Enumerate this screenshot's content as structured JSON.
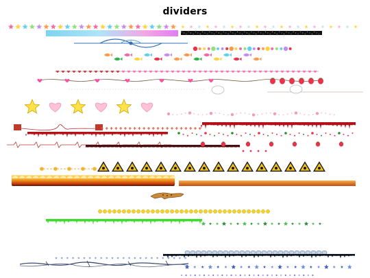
{
  "page": {
    "title": "dividers"
  },
  "palette": {
    "star_colors": [
      "#f06ba8",
      "#ffd23f",
      "#5fd0f0",
      "#8fe07a",
      "#c58cf2",
      "#ff9a4d"
    ],
    "rainbow_bar": [
      "#7ed4f0",
      "#aee4f8",
      "#f2a6e6",
      "#e27ef0"
    ],
    "heart_pink": "#ff6fae",
    "strawberry_red": "#e8334a",
    "drip_red": "#b3121b",
    "slime_green": "#3ddc2a",
    "hazard_yellow": "#f2c21a",
    "fire_orange": "#f07a12",
    "chain_blue": "#6f8fb0"
  },
  "dividers": [
    {
      "name": "star-garland",
      "icon": "star-icon"
    },
    {
      "name": "rainbow-bar"
    },
    {
      "name": "sparkle-black-strip"
    },
    {
      "name": "blue-swirl-ornament"
    },
    {
      "name": "tiny-icons-row"
    },
    {
      "name": "fish-row",
      "icon": "fish-icon"
    },
    {
      "name": "heart-chain",
      "icon": "heart-icon"
    },
    {
      "name": "strawberry-vine",
      "icon": "strawberry-icon"
    },
    {
      "name": "lace-bunny-divider"
    },
    {
      "name": "pixel-stars-hearts",
      "icon": "star-icon"
    },
    {
      "name": "pink-floral-trail"
    },
    {
      "name": "telephone-cord",
      "icon": "telephone-icon"
    },
    {
      "name": "red-plus-row"
    },
    {
      "name": "blood-drip-bar"
    },
    {
      "name": "heartbeat-line"
    },
    {
      "name": "hazard-signs-row",
      "icon": "hazard-sign-icon"
    },
    {
      "name": "flame-bar",
      "icon": "fire-icon"
    },
    {
      "name": "leopard-running",
      "icon": "leopard-icon"
    },
    {
      "name": "smiley-chain",
      "icon": "smiley-icon"
    },
    {
      "name": "green-slime-bar"
    },
    {
      "name": "green-sparkle-row"
    },
    {
      "name": "chain-links",
      "icon": "chain-icon"
    },
    {
      "name": "barbed-wire-vine"
    },
    {
      "name": "blue-sparkle-row"
    }
  ]
}
